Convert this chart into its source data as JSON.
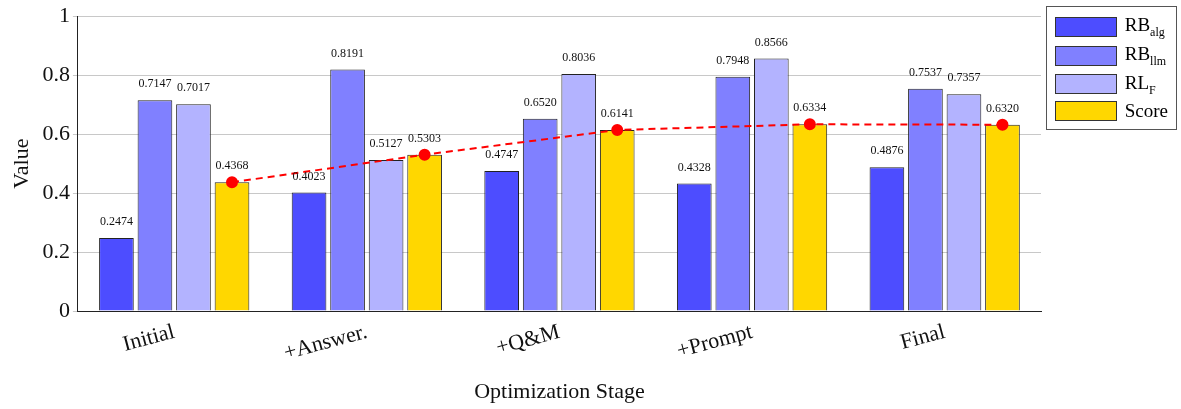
{
  "chart_data": {
    "type": "bar",
    "xlabel": "Optimization Stage",
    "ylabel": "Value",
    "categories": [
      "Initial",
      "+Answer.",
      "+Q&M",
      "+Prompt",
      "Final"
    ],
    "series": [
      {
        "name": "RB$_{alg}$",
        "color": "#4d4dff",
        "values": [
          0.2474,
          0.4023,
          0.4747,
          0.4328,
          0.4876
        ],
        "value_labels": [
          "0.2474",
          "0.4023",
          "0.4747",
          "0.4328",
          "0.4876"
        ]
      },
      {
        "name": "RB$_{llm}$",
        "color": "#8080ff",
        "values": [
          0.7147,
          0.8191,
          0.652,
          0.7948,
          0.7537
        ],
        "value_labels": [
          "0.7147",
          "0.8191",
          "0.6520",
          "0.7948",
          "0.7537"
        ]
      },
      {
        "name": "RL$_{F}$",
        "color": "#b3b3ff",
        "values": [
          0.7017,
          0.5127,
          0.8036,
          0.8566,
          0.7357
        ],
        "value_labels": [
          "0.7017",
          "0.5127",
          "0.8036",
          "0.8566",
          "0.7357"
        ]
      },
      {
        "name": "Score",
        "color": "#ffd700",
        "values": [
          0.4368,
          0.5303,
          0.6141,
          0.6334,
          0.632
        ],
        "value_labels": [
          "0.4368",
          "0.5303",
          "0.6141",
          "0.6334",
          "0.6320"
        ]
      },
      {
        "type": "line",
        "color": "#ff0000",
        "values": [
          0.4368,
          0.5303,
          0.6141,
          0.6334,
          0.632
        ],
        "marker": "circle",
        "line_style": "dashed"
      }
    ],
    "ylim": [
      0,
      1
    ],
    "yticks": [
      0,
      0.2,
      0.4,
      0.6,
      0.8,
      1
    ],
    "grid": "y",
    "legend": "top right"
  }
}
